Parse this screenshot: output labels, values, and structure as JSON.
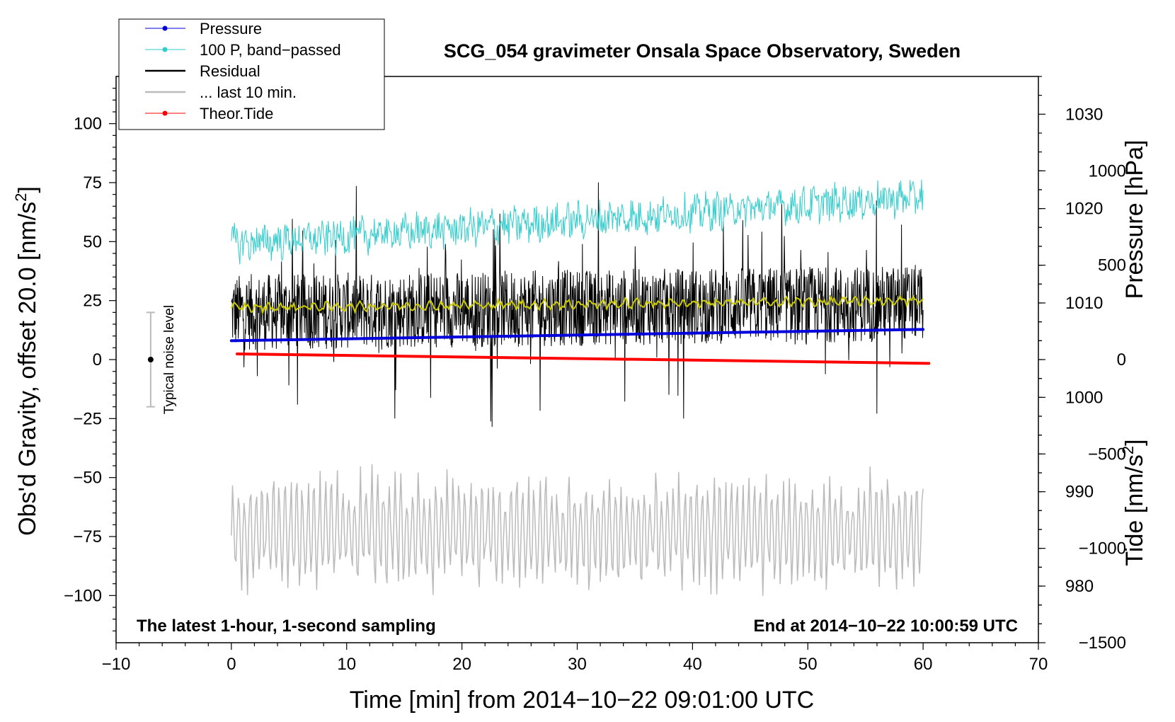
{
  "chart_data": {
    "type": "line",
    "title": "SCG_054 gravimeter Onsala Space Observatory, Sweden",
    "xlabel": "Time [min] from 2014−10−22 09:01:00 UTC",
    "ylabel": "Obs'd Gravity, offset 20.0 [nm/s²]",
    "ylabel_parts": {
      "main": "Obs'd Gravity, offset 20.0 [nm/s",
      "sup": "2",
      "end": "]"
    },
    "y2label": "Pressure [hPa]",
    "y3label_parts": {
      "main": "Tide [nm/s",
      "sup": "2",
      "end": "]"
    },
    "xlim": [
      -10,
      70
    ],
    "ylim": [
      -120,
      120
    ],
    "y2lim": [
      974,
      1034
    ],
    "y3lim": [
      -1500,
      1500
    ],
    "x_ticks": [
      -10,
      0,
      10,
      20,
      30,
      40,
      50,
      60,
      70
    ],
    "x_tick_labels": [
      "−10",
      "0",
      "10",
      "20",
      "30",
      "40",
      "50",
      "60",
      "70"
    ],
    "y_ticks": [
      100,
      75,
      50,
      25,
      0,
      -25,
      -50,
      -75,
      -100
    ],
    "y_tick_labels": [
      "100",
      "75",
      "50",
      "25",
      "0",
      "−25",
      "−50",
      "−75",
      "−100"
    ],
    "y2_ticks": [
      1030,
      1020,
      1010,
      1000,
      990,
      980
    ],
    "y2_tick_labels": [
      "1030",
      "1020",
      "1010",
      "1000",
      "990",
      "980"
    ],
    "y3_ticks": [
      1000,
      500,
      0,
      -500,
      -1000,
      -1500
    ],
    "y3_tick_labels": [
      "1000",
      "500",
      "0",
      "−500",
      "−1000",
      "−1500"
    ],
    "annotations": {
      "bottom_left": "The latest 1-hour, 1-second sampling",
      "bottom_right": "End at 2014−10−22 10:00:59 UTC",
      "noise_label": "Typical noise level"
    },
    "noise_bar": {
      "x": -7,
      "center": 0,
      "half_range": 20
    },
    "legend": [
      {
        "label": "Pressure",
        "color": "#0000dd",
        "marker": true
      },
      {
        "label": "100 P, band−passed",
        "color": "#33cccc",
        "marker": true
      },
      {
        "label": "Residual",
        "color": "#000000",
        "marker": false
      },
      {
        "label": "... last 10 min.",
        "color": "#bbbbbb",
        "marker": false
      },
      {
        "label": "Theor.Tide",
        "color": "#ff0000",
        "marker": true
      }
    ],
    "series": [
      {
        "name": "Pressure",
        "axis": "pressure",
        "color": "#0000dd",
        "x": [
          0,
          60
        ],
        "values": [
          1006.0,
          1007.2
        ]
      },
      {
        "name": "100 P, band−passed",
        "axis": "gravity",
        "color": "#33cccc",
        "x": [
          0,
          60
        ],
        "values": [
          49,
          69
        ],
        "noise_amplitude": 7
      },
      {
        "name": "Residual",
        "axis": "gravity",
        "color": "#000000",
        "x": [
          0,
          60
        ],
        "values": [
          20,
          24
        ],
        "noise_amplitude": 25
      },
      {
        "name": "Residual (smoothed)",
        "axis": "gravity",
        "color": "#cccc00",
        "x": [
          0,
          60
        ],
        "values": [
          22,
          25
        ],
        "noise_amplitude": 2
      },
      {
        "name": "... last 10 min.",
        "axis": "gravity",
        "color": "#bbbbbb",
        "x": [
          0,
          60
        ],
        "values": [
          -73,
          -73
        ],
        "noise_amplitude": 20
      },
      {
        "name": "Theor.Tide",
        "axis": "tide",
        "color": "#ff0000",
        "x": [
          0.5,
          60.5
        ],
        "values": [
          30,
          -20
        ]
      }
    ]
  }
}
